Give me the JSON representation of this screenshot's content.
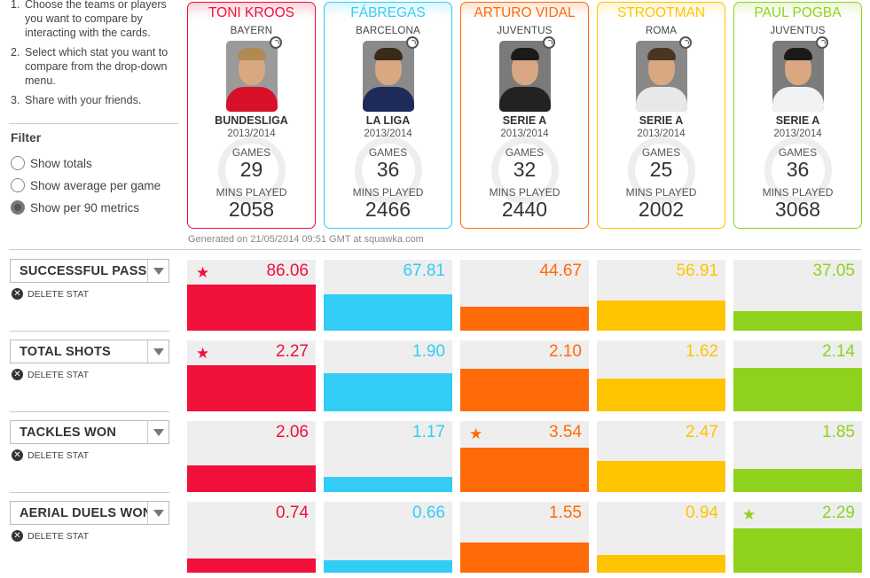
{
  "instructions": [
    {
      "num": "1.",
      "text": "Choose the teams or players you want to compare by interacting with the cards."
    },
    {
      "num": "2.",
      "text": "Select which stat you want to compare from the drop-down menu."
    },
    {
      "num": "3.",
      "text": "Share with your friends."
    }
  ],
  "filter": {
    "title": "Filter",
    "options": [
      {
        "label": "Show totals",
        "selected": false
      },
      {
        "label": "Show average per game",
        "selected": false
      },
      {
        "label": "Show per 90 metrics",
        "selected": true
      }
    ]
  },
  "labels": {
    "games": "GAMES",
    "mins": "MINS PLAYED",
    "delete": "DELETE STAT"
  },
  "generated": "Generated on 21/05/2014 09:51 GMT at squawka.com",
  "players": [
    {
      "name": "TONI KROOS",
      "team": "BAYERN",
      "league": "BUNDESLIGA",
      "season": "2013/2014",
      "games": "29",
      "mins": "2058",
      "color": "#f0103a"
    },
    {
      "name": "FÁBREGAS",
      "team": "BARCELONA",
      "league": "LA LIGA",
      "season": "2013/2014",
      "games": "36",
      "mins": "2466",
      "color": "#33ccf5"
    },
    {
      "name": "ARTURO VIDAL",
      "team": "JUVENTUS",
      "league": "SERIE A",
      "season": "2013/2014",
      "games": "32",
      "mins": "2440",
      "color": "#ff6a08"
    },
    {
      "name": "STROOTMAN",
      "team": "ROMA",
      "league": "SERIE A",
      "season": "2013/2014",
      "games": "25",
      "mins": "2002",
      "color": "#ffc400"
    },
    {
      "name": "PAUL POGBA",
      "team": "JUVENTUS",
      "league": "SERIE A",
      "season": "2013/2014",
      "games": "36",
      "mins": "3068",
      "color": "#8fd21e"
    }
  ],
  "stats": [
    {
      "name": "SUCCESSFUL PASS",
      "values": [
        "86.06",
        "67.81",
        "44.67",
        "56.91",
        "37.05"
      ],
      "fill": [
        0.65,
        0.51,
        0.34,
        0.43,
        0.28
      ],
      "best": 0
    },
    {
      "name": "TOTAL SHOTS",
      "values": [
        "2.27",
        "1.90",
        "2.10",
        "1.62",
        "2.14"
      ],
      "fill": [
        0.65,
        0.54,
        0.6,
        0.46,
        0.61
      ],
      "best": 0
    },
    {
      "name": "TACKLES WON",
      "values": [
        "2.06",
        "1.17",
        "3.54",
        "2.47",
        "1.85"
      ],
      "fill": [
        0.37,
        0.21,
        0.63,
        0.44,
        0.33
      ],
      "best": 2
    },
    {
      "name": "AERIAL DUELS WON",
      "values": [
        "0.74",
        "0.66",
        "1.55",
        "0.94",
        "2.29"
      ],
      "fill": [
        0.2,
        0.18,
        0.42,
        0.25,
        0.62
      ],
      "best": 4
    }
  ],
  "icons": {
    "star": "star-icon",
    "swap": "swap-icon",
    "delete": "delete-icon",
    "dropdown": "chevron-down-icon"
  }
}
